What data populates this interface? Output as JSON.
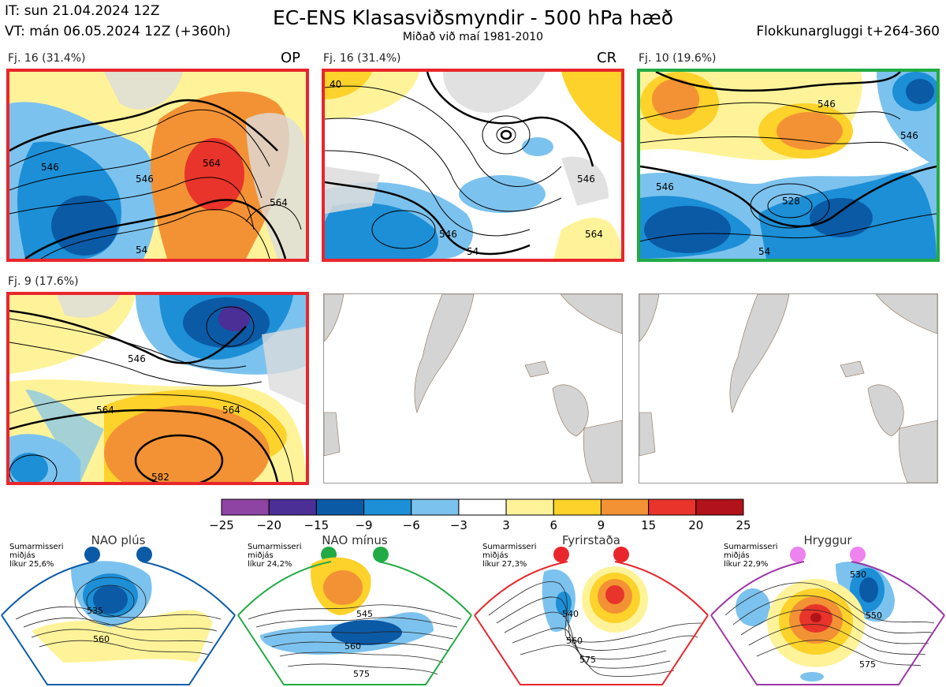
{
  "header": {
    "it_line": "IT: sun 21.04.2024 12Z",
    "vt_line": "VT: mán 06.05.2024 12Z  (+360h)",
    "title": "EC-ENS Klasasviðsmyndir - 500 hPa hæð",
    "subtitle": "Miðað við maí 1981-2010",
    "window": "Flokkunargluggi t+264-360"
  },
  "panels": [
    {
      "label": "Fj. 16 (31.4%)",
      "tag": "OP",
      "frame_color": "#e8262c",
      "regime": "Fyrirstaða",
      "contours": [
        "546",
        "564",
        "546",
        "564",
        "54"
      ]
    },
    {
      "label": "Fj. 16 (31.4%)",
      "tag": "CR",
      "frame_color": "#e8262c",
      "regime": "Fyrirstaða",
      "contours": [
        "546",
        "546",
        "564",
        "54",
        "40"
      ]
    },
    {
      "label": "Fj. 10 (19.6%)",
      "tag": "",
      "frame_color": "#22aa44",
      "regime": "NAO mínus",
      "contours": [
        "546",
        "528",
        "546",
        "546",
        "54"
      ]
    },
    {
      "label": "Fj. 9 (17.6%)",
      "tag": "",
      "frame_color": "#e8262c",
      "regime": "Fyrirstaða",
      "contours": [
        "546",
        "564",
        "564",
        "582"
      ]
    }
  ],
  "colorbar": {
    "ticks": [
      "−25",
      "−20",
      "−15",
      "−9",
      "−6",
      "−3",
      "3",
      "6",
      "9",
      "15",
      "20",
      "25"
    ],
    "colors": [
      "#8e44a3",
      "#4b2e96",
      "#0b5aa6",
      "#1c8fd6",
      "#7cc2ee",
      "#ffffff",
      "#fff39a",
      "#fdd22a",
      "#f39234",
      "#e8342a",
      "#b2121a"
    ]
  },
  "regimes": [
    {
      "name": "NAO plús",
      "note1": "Sumarmisseri",
      "note2": "miðjás",
      "note3": "líkur 25,6%",
      "color": "#0b5aa6",
      "contours": [
        "535",
        "560"
      ]
    },
    {
      "name": "NAO mínus",
      "note1": "Sumarmisseri",
      "note2": "miðjás",
      "note3": "líkur 24,2%",
      "color": "#22aa44",
      "contours": [
        "545",
        "560",
        "575"
      ]
    },
    {
      "name": "Fyrirstaða",
      "note1": "Sumarmisseri",
      "note2": "miðjás",
      "note3": "líkur 27,3%",
      "color": "#e8262c",
      "contours": [
        "540",
        "560",
        "575"
      ]
    },
    {
      "name": "Hryggur",
      "note1": "Sumarmisseri",
      "note2": "miðjás",
      "note3": "líkur 22,9%",
      "color": "#ee82ee",
      "contours": [
        "530",
        "550",
        "575"
      ]
    }
  ],
  "chart_data": {
    "type": "heatmap",
    "title": "EC-ENS Klasasviðsmyndir - 500 hPa hæð",
    "variable": "500 hPa height anomaly (dam) vs May 1981-2010",
    "clusters": [
      {
        "label": "Fj. 16 (31.4%)",
        "members": 16,
        "percent": 31.4,
        "regime": "Fyrirstaða",
        "tag": "OP"
      },
      {
        "label": "Fj. 16 (31.4%)",
        "members": 16,
        "percent": 31.4,
        "regime": "Fyrirstaða",
        "tag": "CR"
      },
      {
        "label": "Fj. 10 (19.6%)",
        "members": 10,
        "percent": 19.6,
        "regime": "NAO mínus",
        "tag": ""
      },
      {
        "label": "Fj. 9 (17.6%)",
        "members": 9,
        "percent": 17.6,
        "regime": "Fyrirstaða",
        "tag": ""
      }
    ],
    "colorbar_levels": [
      -25,
      -20,
      -15,
      -9,
      -6,
      -3,
      3,
      6,
      9,
      15,
      20,
      25
    ],
    "regime_probabilities": [
      {
        "name": "NAO plús",
        "percent": 25.6
      },
      {
        "name": "NAO mínus",
        "percent": 24.2
      },
      {
        "name": "Fyrirstaða",
        "percent": 27.3
      },
      {
        "name": "Hryggur",
        "percent": 22.9
      }
    ]
  }
}
